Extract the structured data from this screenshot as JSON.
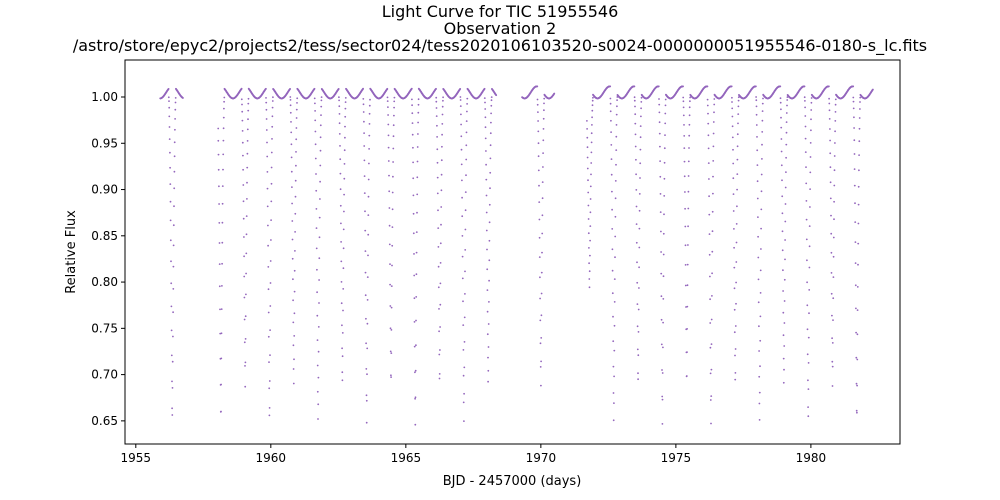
{
  "chart_data": {
    "type": "scatter",
    "title": "Light Curve for TIC 51955546",
    "subtitle": "Observation 2",
    "filename": "/astro/store/epyc2/projects2/tess/sector024/tess2020106103520-s0024-0000000051955546-0180-s_lc.fits",
    "xlabel": "BJD - 2457000 (days)",
    "ylabel": "Relative Flux",
    "xlim": [
      1954.6,
      1983.3
    ],
    "ylim": [
      0.625,
      1.04
    ],
    "xticks": [
      1955,
      1960,
      1965,
      1970,
      1975,
      1980
    ],
    "xtick_labels": [
      "1955",
      "1960",
      "1965",
      "1970",
      "1975",
      "1980"
    ],
    "yticks": [
      0.65,
      0.7,
      0.75,
      0.8,
      0.85,
      0.9,
      0.95,
      1.0
    ],
    "ytick_labels": [
      "0.65",
      "0.70",
      "0.75",
      "0.80",
      "0.85",
      "0.90",
      "0.95",
      "1.00"
    ],
    "grid": false,
    "marker_color": "#9467bd",
    "series": [
      {
        "observed_ranges": [
          [
            1955.9,
            1956.75
          ],
          [
            1958.05,
            1968.35
          ],
          [
            1969.3,
            1970.5
          ],
          [
            1971.7,
            1982.3
          ]
        ],
        "eclipses": [
          {
            "t": 1956.35,
            "min": 0.645
          },
          {
            "t": 1958.15,
            "min": 0.645
          },
          {
            "t": 1959.05,
            "min": 0.685
          },
          {
            "t": 1959.95,
            "min": 0.645
          },
          {
            "t": 1960.85,
            "min": 0.685
          },
          {
            "t": 1961.75,
            "min": 0.645
          },
          {
            "t": 1962.65,
            "min": 0.685
          },
          {
            "t": 1963.55,
            "min": 0.645
          },
          {
            "t": 1964.45,
            "min": 0.685
          },
          {
            "t": 1965.35,
            "min": 0.645
          },
          {
            "t": 1966.25,
            "min": 0.685
          },
          {
            "t": 1967.15,
            "min": 0.645
          },
          {
            "t": 1968.05,
            "min": 0.685
          },
          {
            "t": 1970.0,
            "min": 0.685
          },
          {
            "t": 1971.8,
            "min": 0.79
          },
          {
            "t": 1972.7,
            "min": 0.645
          },
          {
            "t": 1973.6,
            "min": 0.685
          },
          {
            "t": 1974.5,
            "min": 0.645
          },
          {
            "t": 1975.4,
            "min": 0.685
          },
          {
            "t": 1976.3,
            "min": 0.645
          },
          {
            "t": 1977.2,
            "min": 0.685
          },
          {
            "t": 1978.1,
            "min": 0.645
          },
          {
            "t": 1979.0,
            "min": 0.685
          },
          {
            "t": 1979.9,
            "min": 0.645
          },
          {
            "t": 1980.8,
            "min": 0.685
          },
          {
            "t": 1981.7,
            "min": 0.645
          }
        ],
        "baseline": 1.0
      }
    ]
  }
}
